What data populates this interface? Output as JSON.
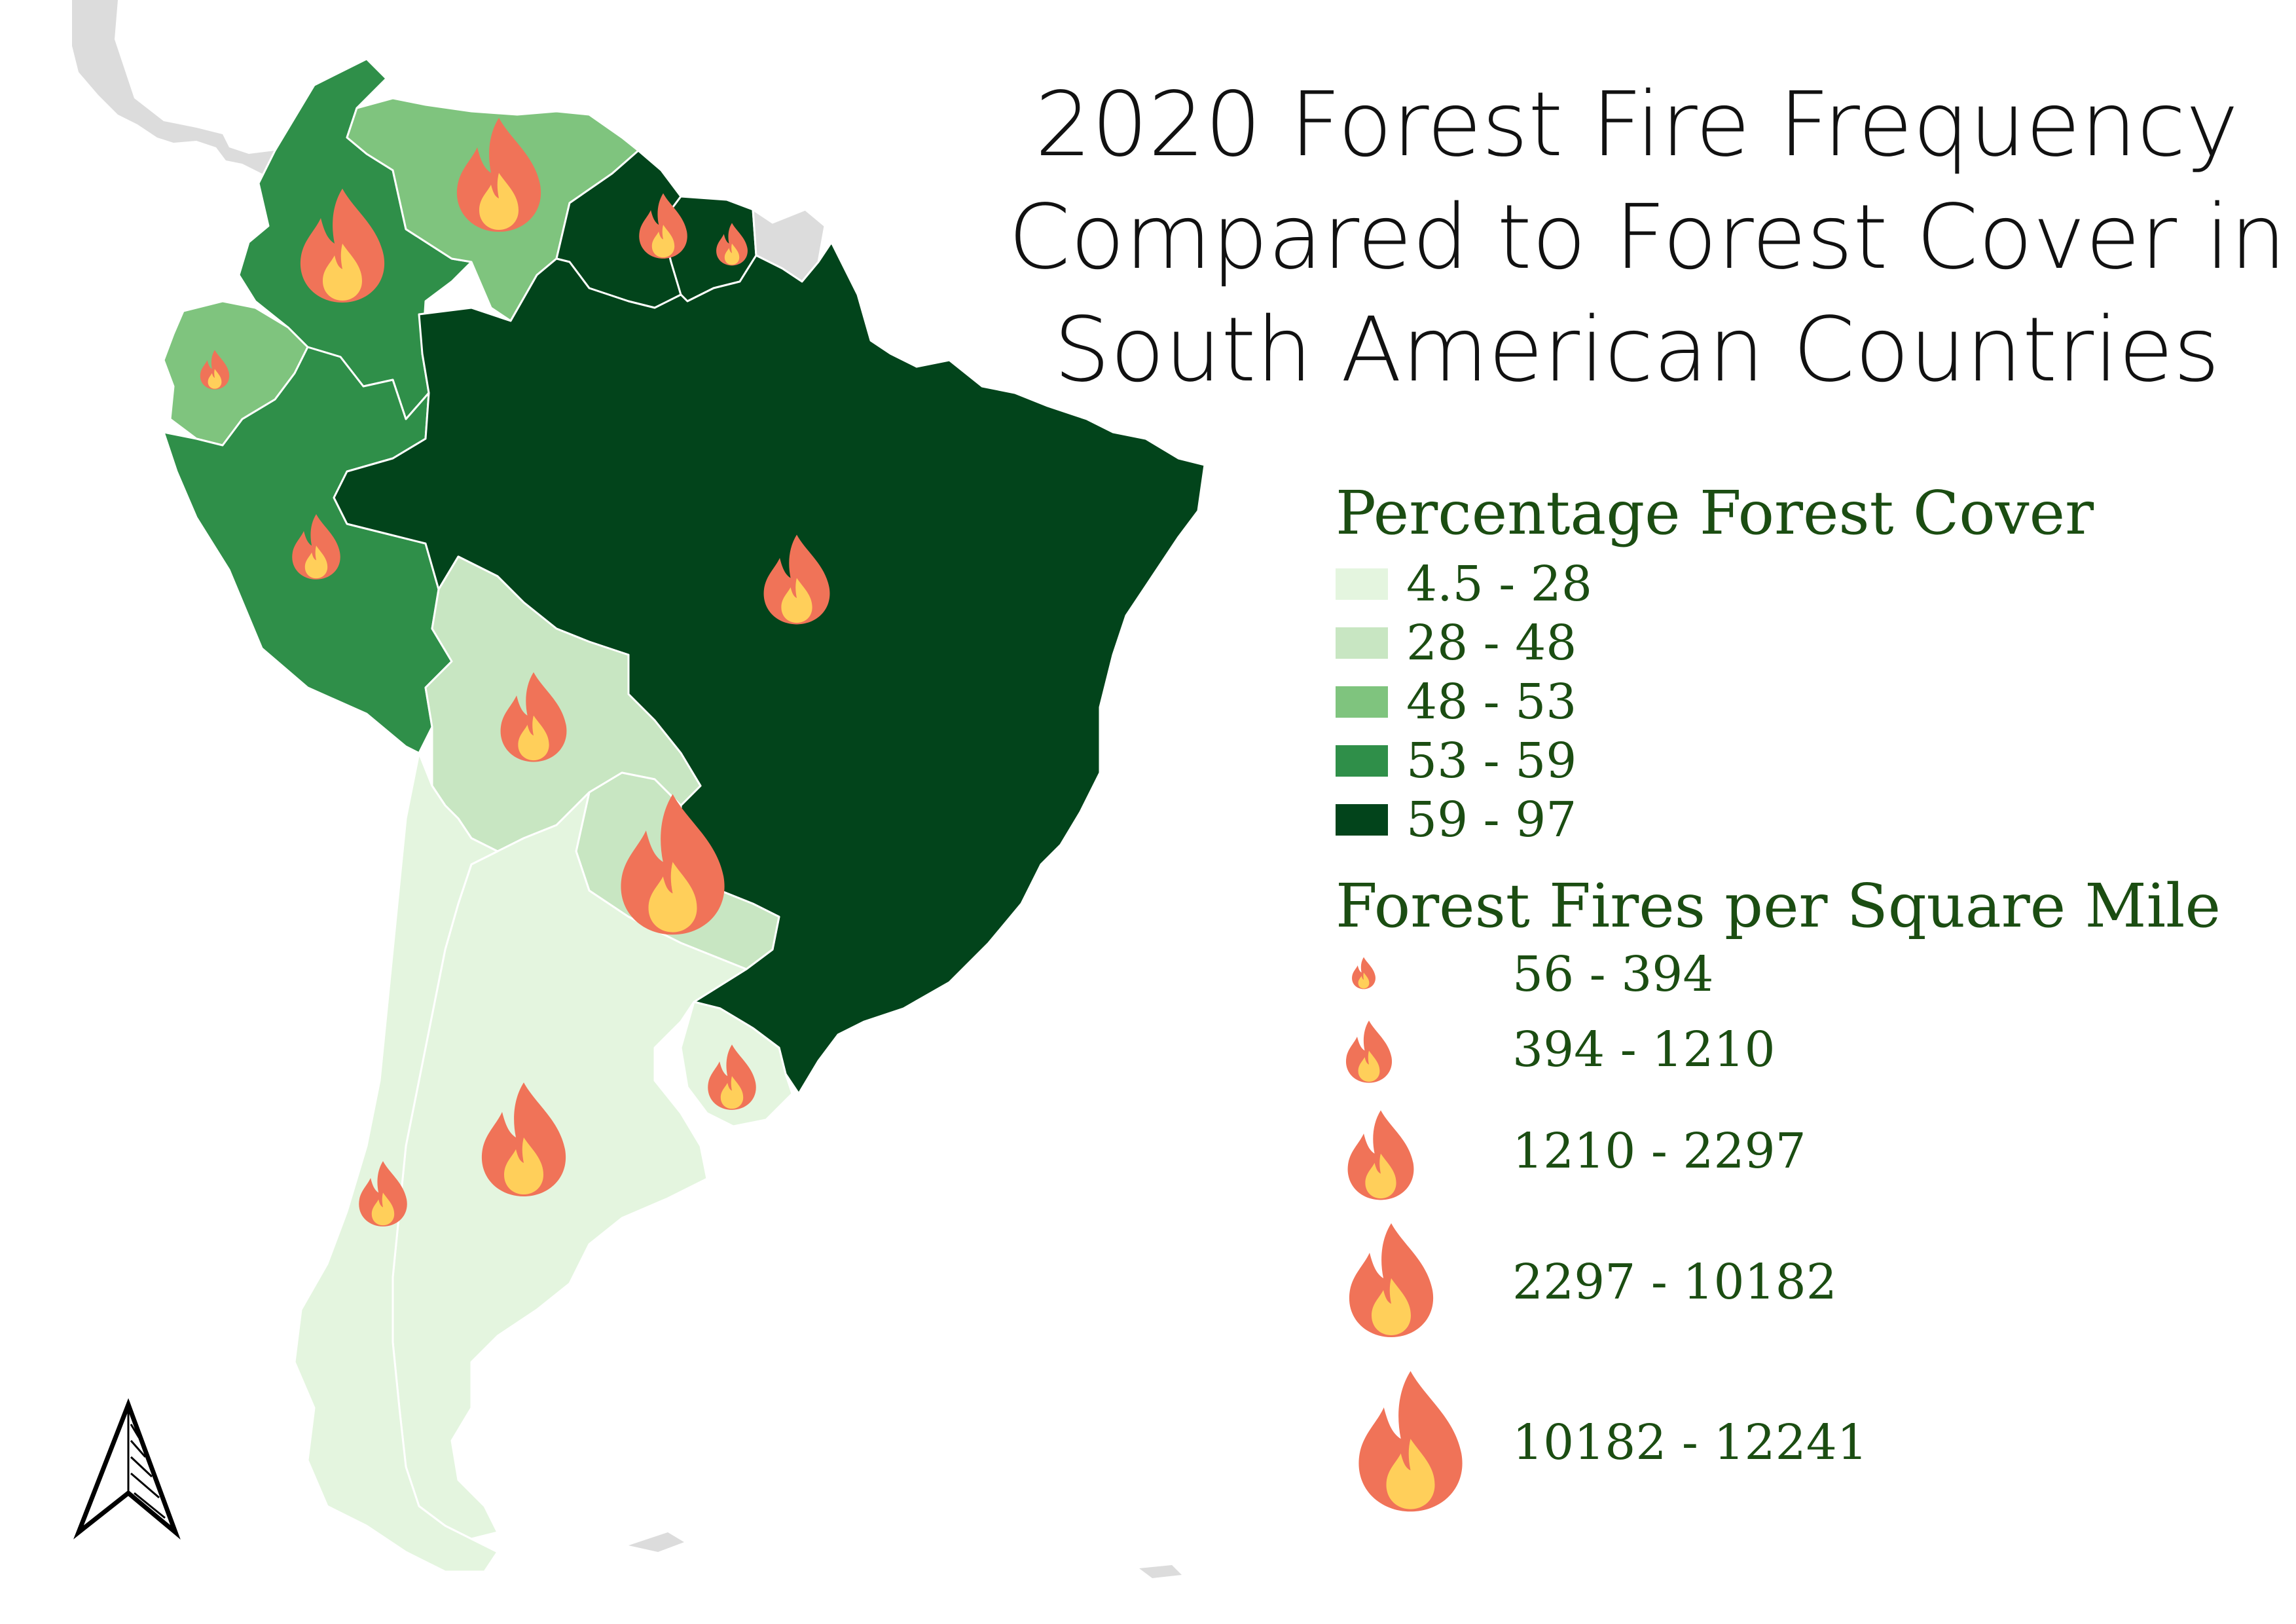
{
  "title": {
    "lines": [
      "2020 Forest Fire Frequency",
      "Compared to Forest Cover in",
      "South American Countries"
    ]
  },
  "legend_cover": {
    "heading": "Percentage Forest Cover",
    "classes": [
      {
        "label": "4.5 - 28",
        "color": "#e4f5df"
      },
      {
        "label": "28 - 48",
        "color": "#c8e6c2"
      },
      {
        "label": "48 - 53",
        "color": "#7fc47e"
      },
      {
        "label": "53 - 59",
        "color": "#2f8f49"
      },
      {
        "label": "59 - 97",
        "color": "#02441b"
      }
    ]
  },
  "legend_fires": {
    "heading": "Forest Fires per Square Mile",
    "classes": [
      {
        "label": "56 - 394",
        "size_class": 1
      },
      {
        "label": "394 - 1210",
        "size_class": 2
      },
      {
        "label": "1210 - 2297",
        "size_class": 3
      },
      {
        "label": "2297 - 10182",
        "size_class": 4
      },
      {
        "label": "10182 - 12241",
        "size_class": 5
      }
    ]
  },
  "colors": {
    "background_land": "#dcdcdc",
    "flame_outer": "#f07358",
    "flame_inner": "#ffcf5a",
    "legend_text": "#1b4d12"
  },
  "icons": {
    "flame": "fire-icon",
    "north_arrow": "north-arrow-icon"
  }
}
